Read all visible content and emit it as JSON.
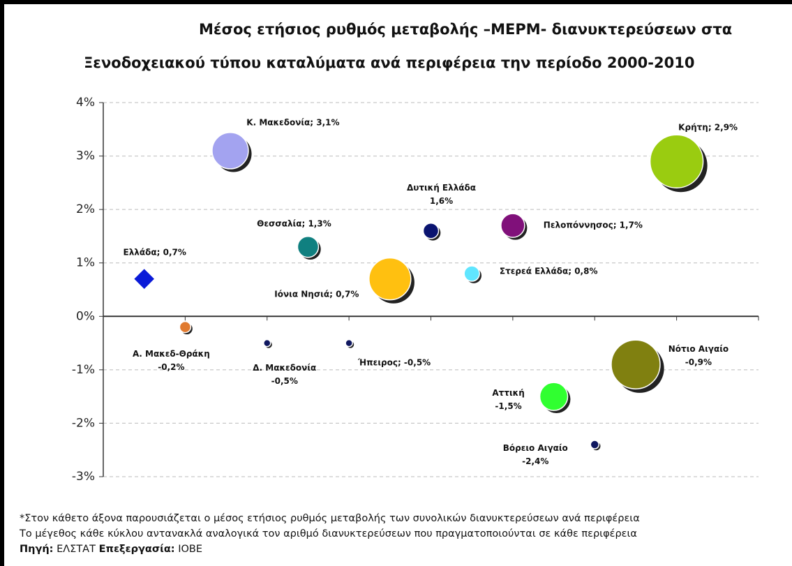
{
  "chart_data": {
    "type": "bubble",
    "title": [
      "Μέσος ετήσιος ρυθμός μεταβολής –ΜΕΡΜ- διανυκτερεύσεων στα",
      "Ξενοδοχειακού τύπου καταλύματα ανά περιφέρεια την περίοδο 2000-2010"
    ],
    "ylim": [
      -3,
      4
    ],
    "yticks": [
      {
        "value": -3,
        "label": "-3%"
      },
      {
        "value": -2,
        "label": "-2%"
      },
      {
        "value": -1,
        "label": "-1%"
      },
      {
        "value": 0,
        "label": "0%"
      },
      {
        "value": 1,
        "label": "1%"
      },
      {
        "value": 2,
        "label": "2%"
      },
      {
        "value": 3,
        "label": "3%"
      },
      {
        "value": 4,
        "label": "4%"
      }
    ],
    "xlim": [
      0,
      8
    ],
    "xticks": [
      0,
      1,
      2,
      3,
      4,
      5,
      6,
      7,
      8
    ],
    "grid": true,
    "x": [
      0.5,
      1.55,
      2.5,
      4,
      5,
      7,
      3.5,
      4.5,
      1,
      2,
      3,
      6.5,
      5.5,
      6
    ],
    "values": [
      0.7,
      3.1,
      1.3,
      1.6,
      1.7,
      2.9,
      0.7,
      0.8,
      -0.2,
      -0.5,
      -0.5,
      -0.9,
      -1.5,
      -2.4
    ],
    "sizes": [
      11,
      26,
      15,
      11,
      17,
      38,
      30,
      11,
      8,
      5,
      5,
      35,
      20,
      6
    ],
    "markers": [
      "diamond",
      "circle",
      "circle",
      "circle",
      "circle",
      "circle",
      "circle",
      "circle",
      "circle",
      "circle",
      "circle",
      "circle",
      "circle",
      "circle"
    ],
    "colors": [
      "#0a1ad8",
      "#a3a3f0",
      "#108080",
      "#0a1470",
      "#80107a",
      "#9acc10",
      "#ffc010",
      "#60e6ff",
      "#e07a30",
      "#101860",
      "#101860",
      "#808010",
      "#30ff30",
      "#101860"
    ],
    "value_labels": [
      "Ελλάδα; 0,7%",
      "Κ. Μακεδονία; 3,1%",
      "Θεσσαλία; 1,3%",
      "Δυτική Ελλάδα\n1,6%",
      "Πελοπόννησος; 1,7%",
      "Κρήτη; 2,9%",
      "Ιόνια Νησιά; 0,7%",
      "Στερεά Ελλάδα; 0,8%",
      "Α. Μακεδ-Θράκη\n-0,2%",
      "Δ. Μακεδονία\n-0,5%",
      "Ήπειρος; -0,5%",
      "Νότιο Αιγαίο\n-0,9%",
      "Αττική\n-1,5%",
      "Βόρειο Αιγαίο\n-2,4%"
    ]
  },
  "notes": [
    "*Στον κάθετο άξονα παρουσιάζεται ο μέσος ετήσιος ρυθμός μεταβολής των συνολικών διανυκτερεύσεων ανά περιφέρεια",
    "Το μέγεθος κάθε κύκλου αντανακλά αναλογικά τον αριθμό διανυκτερεύσεων που πραγματοποιούνται σε κάθε περιφέρεια"
  ],
  "source": {
    "label1": "Πηγή:",
    "text1": "ΕΛΣΤΑΤ",
    "label2": "Επεξεργασία:",
    "text2": "ΙΟΒΕ"
  }
}
